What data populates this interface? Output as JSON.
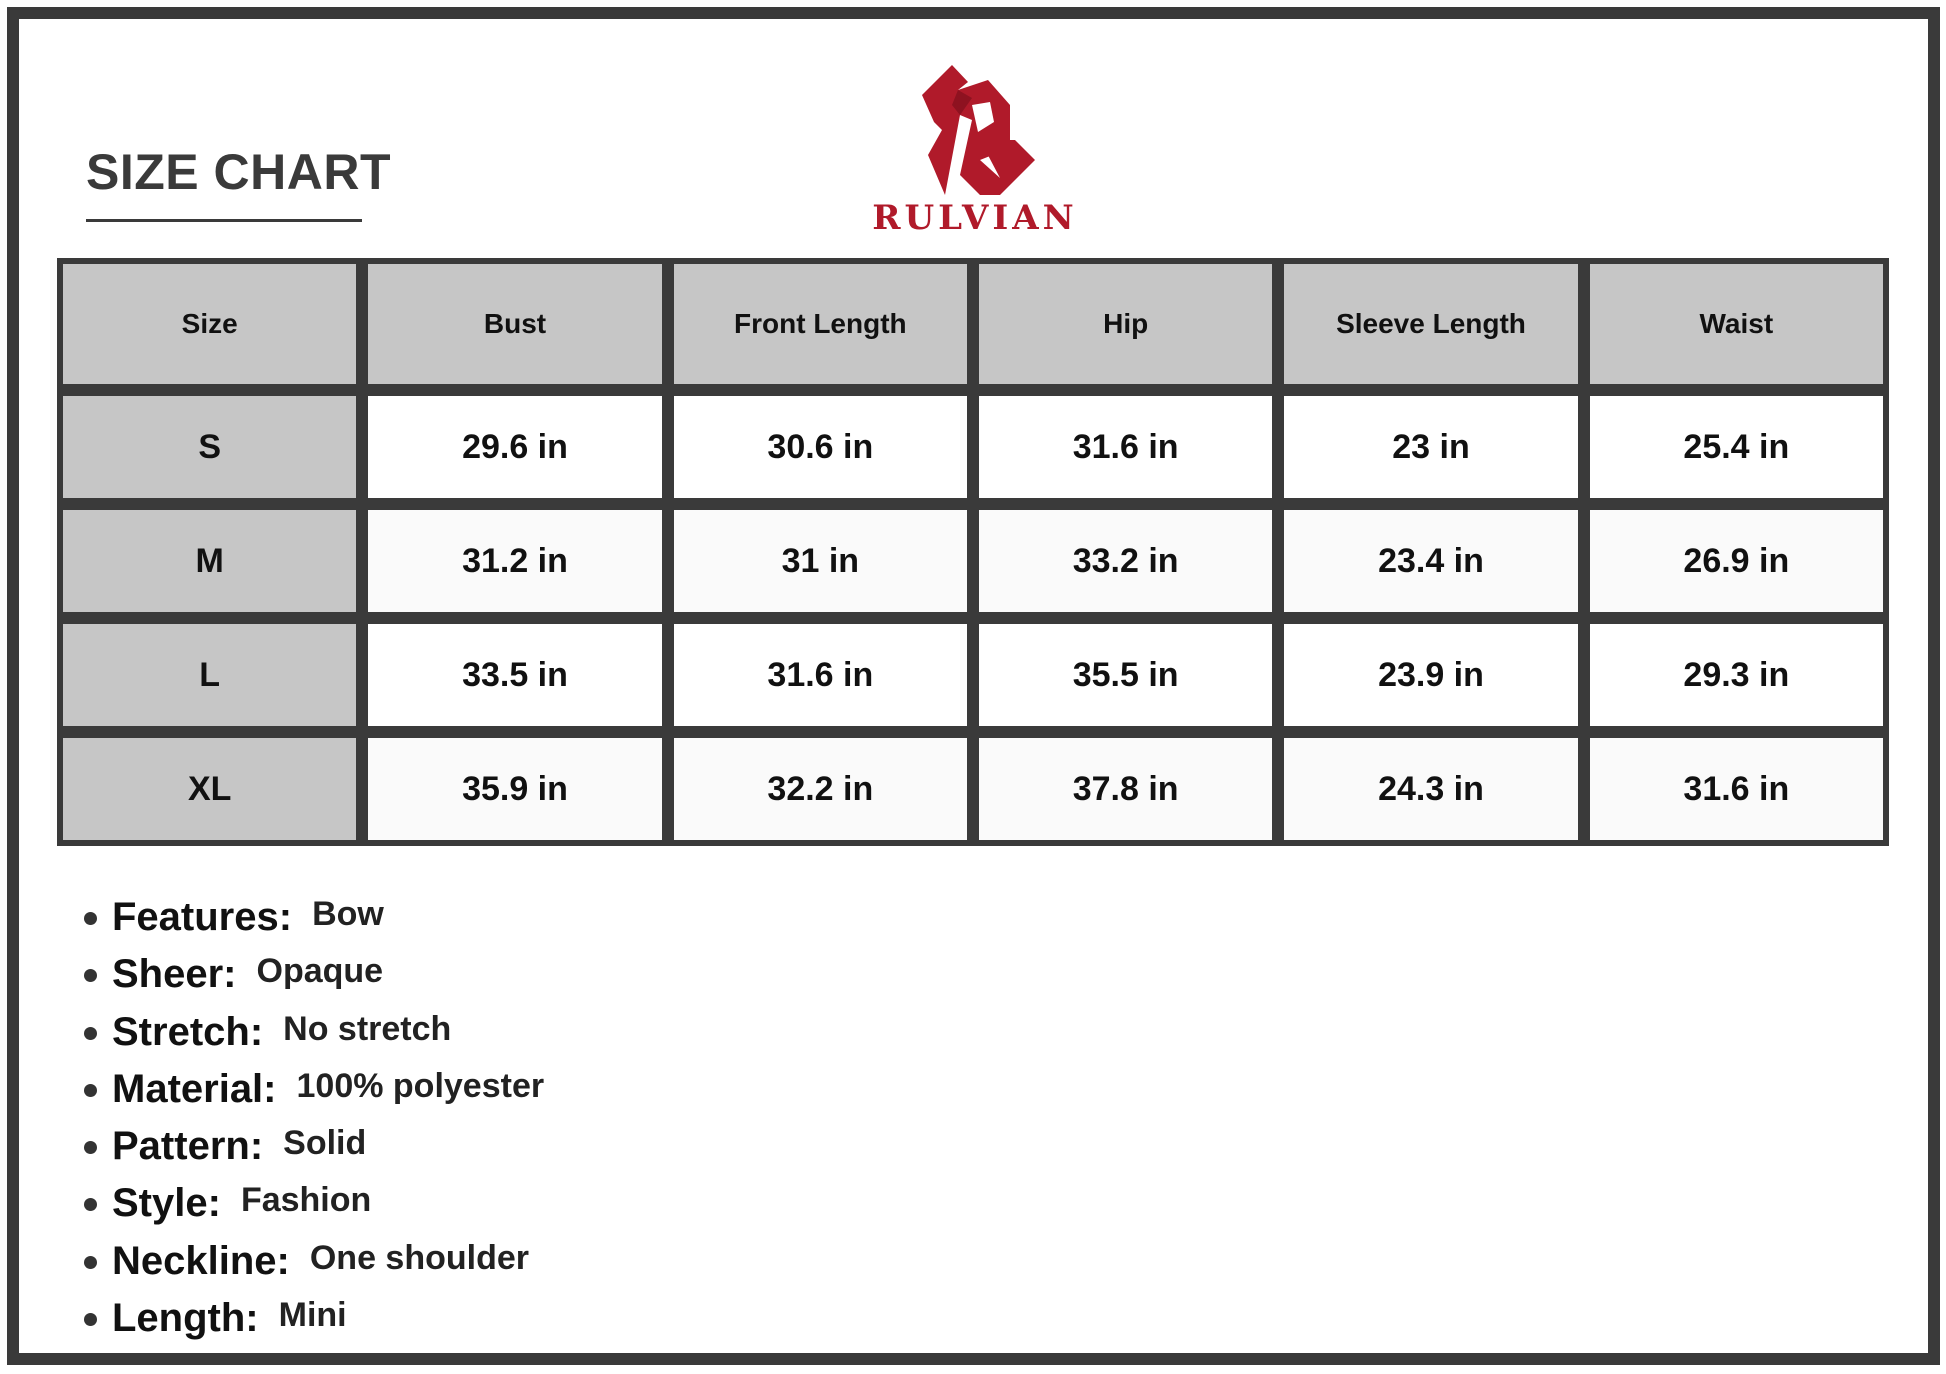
{
  "title": "SIZE CHART",
  "brand": {
    "name": "RULVIAN",
    "color": "#b01a2a"
  },
  "table": {
    "headers": [
      "Size",
      "Bust",
      "Front Length",
      "Hip",
      "Sleeve Length",
      "Waist"
    ],
    "rows": [
      [
        "S",
        "29.6 in",
        "30.6 in",
        "31.6 in",
        "23 in",
        "25.4 in"
      ],
      [
        "M",
        "31.2 in",
        "31 in",
        "33.2 in",
        "23.4 in",
        "26.9 in"
      ],
      [
        "L",
        "33.5 in",
        "31.6 in",
        "35.5 in",
        "23.9 in",
        "29.3 in"
      ],
      [
        "XL",
        "35.9 in",
        "32.2 in",
        "37.8 in",
        "24.3 in",
        "31.6 in"
      ]
    ]
  },
  "features": [
    {
      "label": "Features:",
      "value": "Bow"
    },
    {
      "label": "Sheer:",
      "value": "Opaque"
    },
    {
      "label": "Stretch:",
      "value": "No stretch"
    },
    {
      "label": "Material:",
      "value": "100% polyester"
    },
    {
      "label": "Pattern:",
      "value": "Solid"
    },
    {
      "label": "Style:",
      "value": "Fashion"
    },
    {
      "label": "Neckline:",
      "value": "One shoulder"
    },
    {
      "label": "Length:",
      "value": "Mini"
    }
  ]
}
